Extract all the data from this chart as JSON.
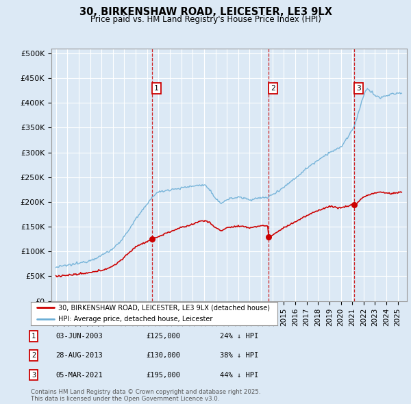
{
  "title": "30, BIRKENSHAW ROAD, LEICESTER, LE3 9LX",
  "subtitle": "Price paid vs. HM Land Registry's House Price Index (HPI)",
  "background_color": "#dce9f5",
  "plot_bg_color": "#dce9f5",
  "ylabel_ticks": [
    "£0",
    "£50K",
    "£100K",
    "£150K",
    "£200K",
    "£250K",
    "£300K",
    "£350K",
    "£400K",
    "£450K",
    "£500K"
  ],
  "ytick_values": [
    0,
    50000,
    100000,
    150000,
    200000,
    250000,
    300000,
    350000,
    400000,
    450000,
    500000
  ],
  "xlim_start": 1994.6,
  "xlim_end": 2025.8,
  "ylim_min": 0,
  "ylim_max": 510000,
  "sale_dates": [
    2003.42,
    2013.66,
    2021.17
  ],
  "sale_prices": [
    125000,
    130000,
    195000
  ],
  "sale_labels": [
    "1",
    "2",
    "3"
  ],
  "legend_line1": "30, BIRKENSHAW ROAD, LEICESTER, LE3 9LX (detached house)",
  "legend_line2": "HPI: Average price, detached house, Leicester",
  "table_rows": [
    {
      "num": "1",
      "date": "03-JUN-2003",
      "price": "£125,000",
      "pct": "24% ↓ HPI"
    },
    {
      "num": "2",
      "date": "28-AUG-2013",
      "price": "£130,000",
      "pct": "38% ↓ HPI"
    },
    {
      "num": "3",
      "date": "05-MAR-2021",
      "price": "£195,000",
      "pct": "44% ↓ HPI"
    }
  ],
  "footer": "Contains HM Land Registry data © Crown copyright and database right 2025.\nThis data is licensed under the Open Government Licence v3.0.",
  "hpi_color": "#6baed6",
  "sale_line_color": "#cc0000",
  "vline_color": "#cc0000",
  "grid_color": "#ffffff",
  "border_color": "#999999"
}
